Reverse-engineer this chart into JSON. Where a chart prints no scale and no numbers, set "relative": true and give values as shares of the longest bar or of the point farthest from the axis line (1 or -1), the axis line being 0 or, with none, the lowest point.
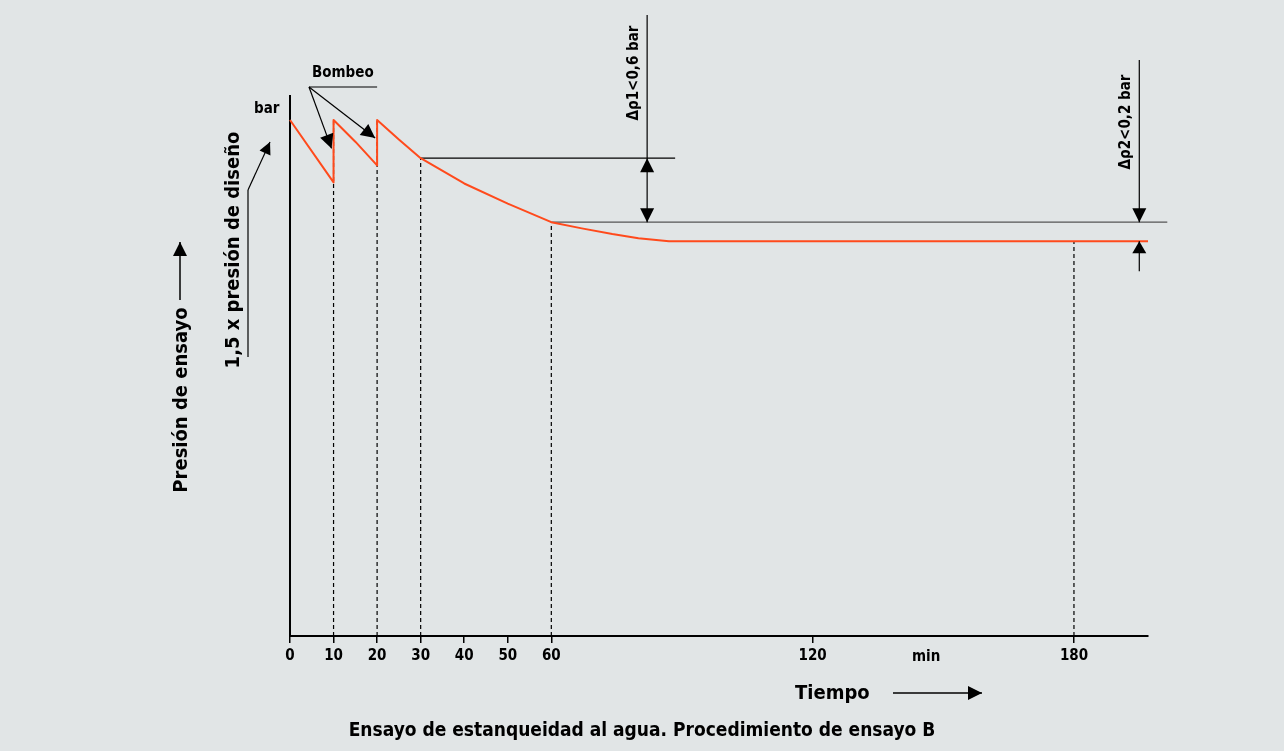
{
  "chart_data": {
    "type": "line",
    "relative": true,
    "title": "Ensayo de estanqueidad al agua. Procedimiento de ensayo B",
    "xlabel": "Tiempo",
    "ylabel": "Presión de ensayo",
    "xlim": [
      0,
      197
    ],
    "xticks": [
      0,
      10,
      20,
      30,
      40,
      50,
      60,
      120,
      180
    ],
    "series": [
      {
        "color": "#ff4a1c",
        "x": [
          0,
          10,
          10,
          15,
          20,
          20,
          25,
          30,
          40,
          50,
          60,
          67,
          74,
          80,
          87,
          197
        ],
        "values": [
          1.0,
          0.879,
          1.0,
          0.958,
          0.912,
          1.0,
          0.962,
          0.926,
          0.877,
          0.838,
          0.802,
          0.79,
          0.779,
          0.771,
          0.765,
          0.765
        ]
      }
    ],
    "ref_lines": [
      {
        "axis": "x",
        "value": 10,
        "color": "#000000",
        "line_style": "dashed"
      },
      {
        "axis": "x",
        "value": 20,
        "color": "#000000",
        "line_style": "dashed"
      },
      {
        "axis": "x",
        "value": 30,
        "color": "#000000",
        "line_style": "dashed"
      },
      {
        "axis": "x",
        "value": 60,
        "color": "#000000",
        "line_style": "dashed"
      },
      {
        "axis": "x",
        "value": 180,
        "color": "#000000",
        "line_style": "dashed"
      },
      {
        "axis": "y",
        "value": 0.926,
        "color": "#000000",
        "line_style": "solid"
      },
      {
        "axis": "y",
        "value": 0.802,
        "color": "#555555",
        "line_style": "solid"
      }
    ],
    "annotations": [
      "Bombeo",
      "bar",
      "1,5 x presión de diseño",
      "min",
      {
        "text": "Δρ1<0,6 bar",
        "x": 82,
        "y": 0.926
      },
      {
        "text": "Δρ2<0,2 bar",
        "x": 195,
        "y": 0.802
      }
    ],
    "grid": false,
    "legend": false,
    "marker": "none",
    "line_style": "solid"
  }
}
